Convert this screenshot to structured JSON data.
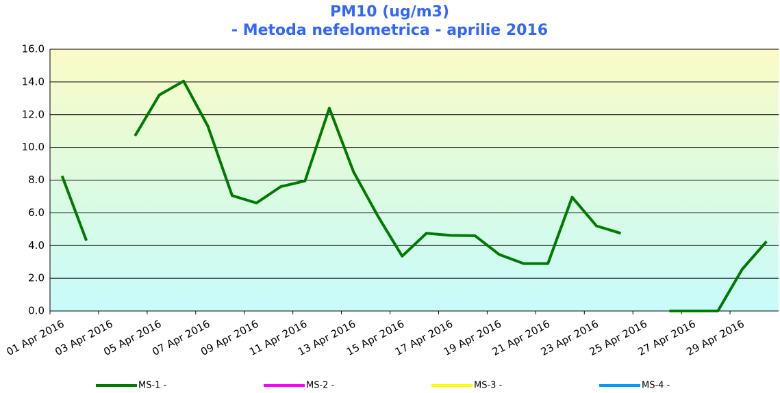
{
  "chart_data": {
    "type": "line",
    "title": "PM10 (ug/m3)",
    "subtitle": "- Metoda nefelometrica - aprilie 2016",
    "categories": [
      "01 Apr 2016",
      null,
      "03 Apr 2016",
      null,
      "05 Apr 2016",
      null,
      "07 Apr 2016",
      null,
      "09 Apr 2016",
      null,
      "11 Apr 2016",
      null,
      "13 Apr 2016",
      null,
      "15 Apr 2016",
      null,
      "17 Apr 2016",
      null,
      "19 Apr 2016",
      null,
      "21 Apr 2016",
      null,
      "23 Apr 2016",
      null,
      "25 Apr 2016",
      null,
      "27 Apr 2016",
      null,
      "29 Apr 2016",
      null
    ],
    "series": [
      {
        "name": "MS-1 -",
        "color": "#007a00",
        "values": [
          8.25,
          4.3,
          null,
          10.7,
          13.2,
          14.05,
          11.3,
          7.05,
          6.6,
          7.6,
          7.95,
          12.4,
          8.5,
          5.8,
          3.35,
          4.75,
          4.62,
          4.6,
          3.45,
          2.9,
          2.9,
          6.95,
          5.2,
          4.75,
          null,
          0,
          0,
          0,
          2.55,
          4.25
        ]
      },
      {
        "name": "MS-2 -",
        "color": "#ff00ff",
        "values": [
          null,
          null,
          null,
          null,
          null,
          null,
          null,
          null,
          null,
          null,
          null,
          null,
          null,
          null,
          null,
          null,
          null,
          null,
          null,
          null,
          null,
          null,
          null,
          null,
          null,
          null,
          null,
          null,
          null,
          null
        ]
      },
      {
        "name": "MS-3 -",
        "color": "#ffff00",
        "values": [
          null,
          null,
          null,
          null,
          null,
          null,
          null,
          null,
          null,
          null,
          null,
          null,
          null,
          null,
          null,
          null,
          null,
          null,
          null,
          null,
          null,
          null,
          null,
          null,
          null,
          null,
          null,
          null,
          null,
          null
        ]
      },
      {
        "name": "MS-4 -",
        "color": "#0099ff",
        "values": [
          null,
          null,
          null,
          null,
          null,
          null,
          null,
          null,
          null,
          null,
          null,
          null,
          null,
          null,
          null,
          null,
          null,
          null,
          null,
          null,
          null,
          null,
          null,
          null,
          null,
          null,
          null,
          null,
          null,
          null
        ]
      }
    ],
    "ylim": [
      0,
      16
    ],
    "yticks": [
      {
        "value": 0,
        "label": "0.0"
      },
      {
        "value": 2,
        "label": "2.0"
      },
      {
        "value": 4,
        "label": "4.0"
      },
      {
        "value": 6,
        "label": "6.0"
      },
      {
        "value": 8,
        "label": "8.0"
      },
      {
        "value": 10,
        "label": "10.0"
      },
      {
        "value": 12,
        "label": "12.0"
      },
      {
        "value": 14,
        "label": "14.0"
      },
      {
        "value": 16,
        "label": "16.0"
      }
    ],
    "grid": true
  }
}
